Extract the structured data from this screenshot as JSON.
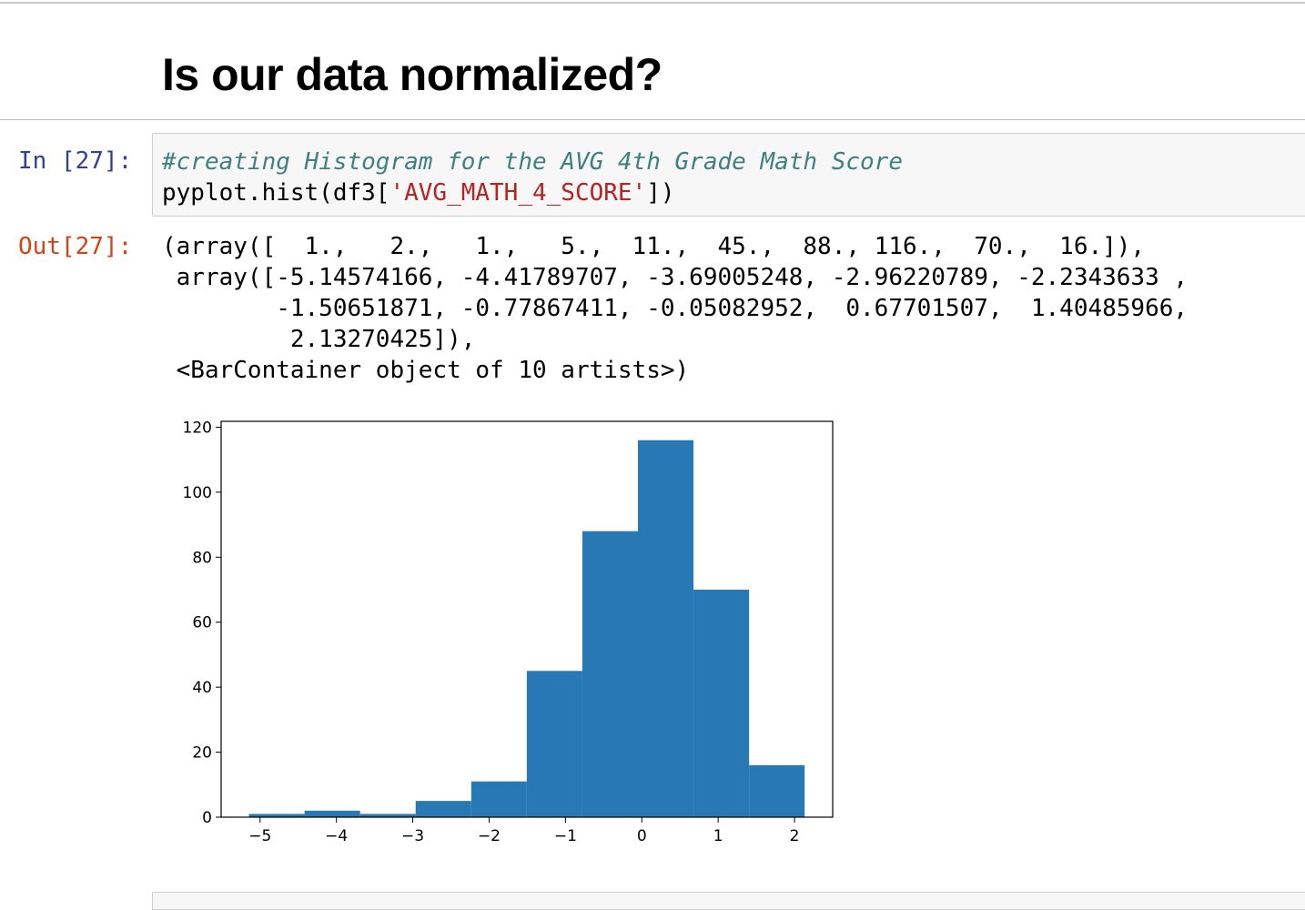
{
  "markdown": {
    "heading": "Is our data normalized?"
  },
  "cell": {
    "in_prompt": "In [27]:",
    "out_prompt": "Out[27]:",
    "code_comment": "#creating Histogram for the AVG 4th Grade Math Score",
    "code_prefix": "pyplot.hist(df3[",
    "code_string": "'AVG_MATH_4_SCORE'",
    "code_suffix": "])",
    "output_lines": [
      "(array([  1.,   2.,   1.,   5.,  11.,  45.,  88., 116.,  70.,  16.]),",
      " array([-5.14574166, -4.41789707, -3.69005248, -2.96220789, -2.2343633 ,",
      "        -1.50651871, -0.77867411, -0.05082952,  0.67701507,  1.40485966,",
      "         2.13270425]),",
      " <BarContainer object of 10 artists>)"
    ]
  },
  "chart_data": {
    "type": "bar",
    "bin_edges": [
      -5.14574166,
      -4.41789707,
      -3.69005248,
      -2.96220789,
      -2.2343633,
      -1.50651871,
      -0.77867411,
      -0.05082952,
      0.67701507,
      1.40485966,
      2.13270425
    ],
    "values": [
      1,
      2,
      1,
      5,
      11,
      45,
      88,
      116,
      70,
      16
    ],
    "xlim": [
      -5.51,
      2.5
    ],
    "ylim": [
      0,
      121.8
    ],
    "xticks": [
      -5,
      -4,
      -3,
      -2,
      -1,
      0,
      1,
      2
    ],
    "xtick_labels": [
      "−5",
      "−4",
      "−3",
      "−2",
      "−1",
      "0",
      "1",
      "2"
    ],
    "yticks": [
      0,
      20,
      40,
      60,
      80,
      100,
      120
    ],
    "ytick_labels": [
      "0",
      "20",
      "40",
      "60",
      "80",
      "100",
      "120"
    ],
    "bar_color": "#2878b5",
    "grid": false
  }
}
